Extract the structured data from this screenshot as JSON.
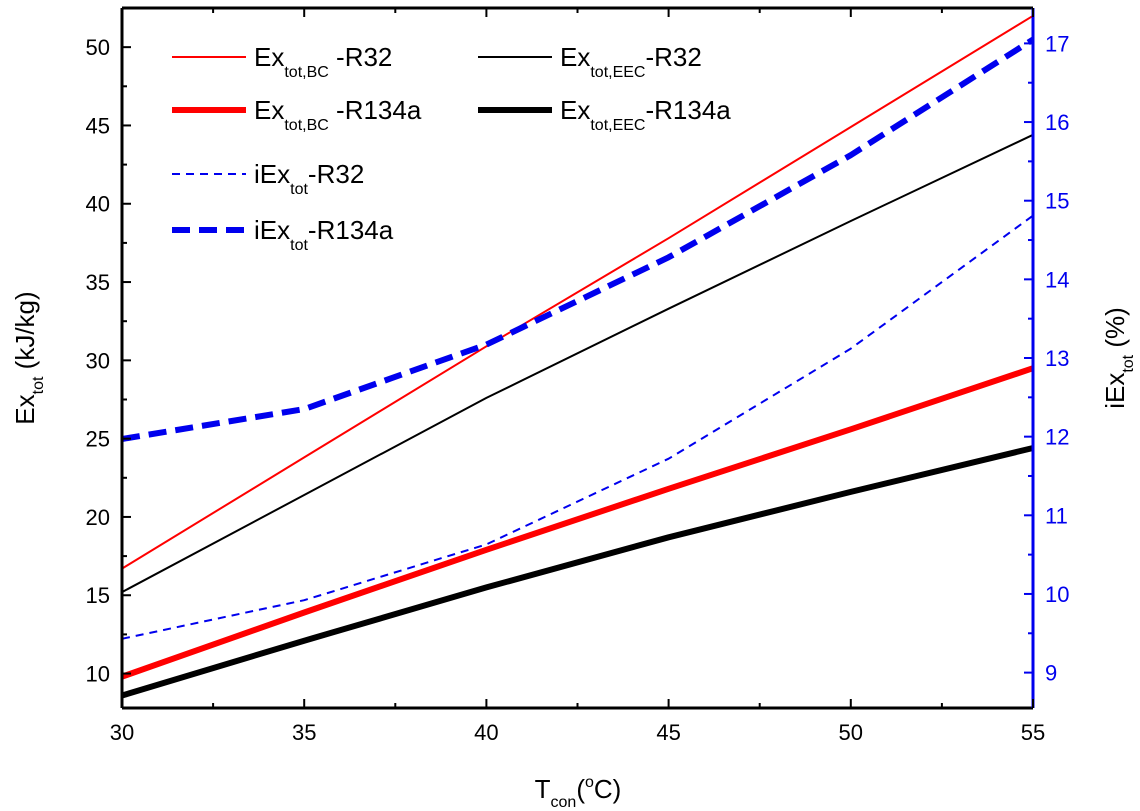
{
  "chart_data": {
    "type": "line",
    "title": "",
    "x": {
      "label_main": "T",
      "label_sub": "con",
      "label_open": "(",
      "label_sup": "o",
      "label_unit": "C)",
      "range": [
        30,
        55
      ],
      "ticks": [
        "30",
        "35",
        "40",
        "45",
        "50",
        "55"
      ]
    },
    "y_left": {
      "label_main": "Ex",
      "label_sub": "tot",
      "label_unit": " (kJ/kg)",
      "range": [
        7.8,
        52.5
      ],
      "ticks": [
        "10",
        "15",
        "20",
        "25",
        "30",
        "35",
        "40",
        "45",
        "50"
      ]
    },
    "y_right": {
      "label_main": "iEx",
      "label_sub": "tot",
      "label_unit": " (%)",
      "range": [
        8.55,
        17.45
      ],
      "ticks": [
        "9",
        "10",
        "11",
        "12",
        "13",
        "14",
        "15",
        "16",
        "17"
      ],
      "color": "#0000ee"
    },
    "series": [
      {
        "key": "bc_r32",
        "name": "Ex_tot,BC -R32",
        "legend_main": "Ex",
        "legend_sub": "tot,BC",
        "legend_tail": " -R32",
        "axis": "left",
        "color": "#ff0000",
        "style": "solid",
        "weight": "thin",
        "x": [
          30,
          35,
          40,
          45,
          50,
          55
        ],
        "y": [
          16.7,
          23.8,
          30.9,
          37.8,
          44.9,
          52.0
        ]
      },
      {
        "key": "eec_r32",
        "name": "Ex_tot,EEC-R32",
        "legend_main": "Ex",
        "legend_sub": "tot,EEC",
        "legend_tail": "-R32",
        "axis": "left",
        "color": "#000000",
        "style": "solid",
        "weight": "thin",
        "x": [
          30,
          35,
          40,
          45,
          50,
          55
        ],
        "y": [
          15.2,
          21.4,
          27.6,
          33.3,
          38.9,
          44.4
        ]
      },
      {
        "key": "bc_r134a",
        "name": "Ex_tot,BC -R134a",
        "legend_main": "Ex",
        "legend_sub": "tot,BC",
        "legend_tail": " -R134a",
        "axis": "left",
        "color": "#ff0000",
        "style": "solid",
        "weight": "thick",
        "x": [
          30,
          35,
          40,
          45,
          50,
          55
        ],
        "y": [
          9.8,
          13.9,
          17.9,
          21.8,
          25.6,
          29.5
        ]
      },
      {
        "key": "eec_r134a",
        "name": "Ex_tot,EEC-R134a",
        "legend_main": "Ex",
        "legend_sub": "tot,EEC",
        "legend_tail": "-R134a",
        "axis": "left",
        "color": "#000000",
        "style": "solid",
        "weight": "thick",
        "x": [
          30,
          35,
          40,
          45,
          50,
          55
        ],
        "y": [
          8.6,
          12.1,
          15.5,
          18.7,
          21.6,
          24.4
        ]
      },
      {
        "key": "iex_r32",
        "name": "iEx_tot-R32",
        "legend_main": "iEx",
        "legend_sub": "tot",
        "legend_tail": "-R32",
        "axis": "right",
        "color": "#0000ee",
        "style": "dashed",
        "weight": "thin",
        "x": [
          30,
          35,
          40,
          45,
          50,
          55
        ],
        "y": [
          9.43,
          9.92,
          10.63,
          11.72,
          13.12,
          14.81
        ]
      },
      {
        "key": "iex_r134a",
        "name": "iEx_tot-R134a",
        "legend_main": "iEx",
        "legend_sub": "tot",
        "legend_tail": "-R134a",
        "axis": "right",
        "color": "#0000ee",
        "style": "dashed",
        "weight": "thick",
        "x": [
          30,
          35,
          40,
          45,
          50,
          55
        ],
        "y": [
          11.97,
          12.35,
          13.17,
          14.28,
          15.58,
          17.05
        ]
      }
    ],
    "legend_position": "top-left",
    "grid": false
  }
}
